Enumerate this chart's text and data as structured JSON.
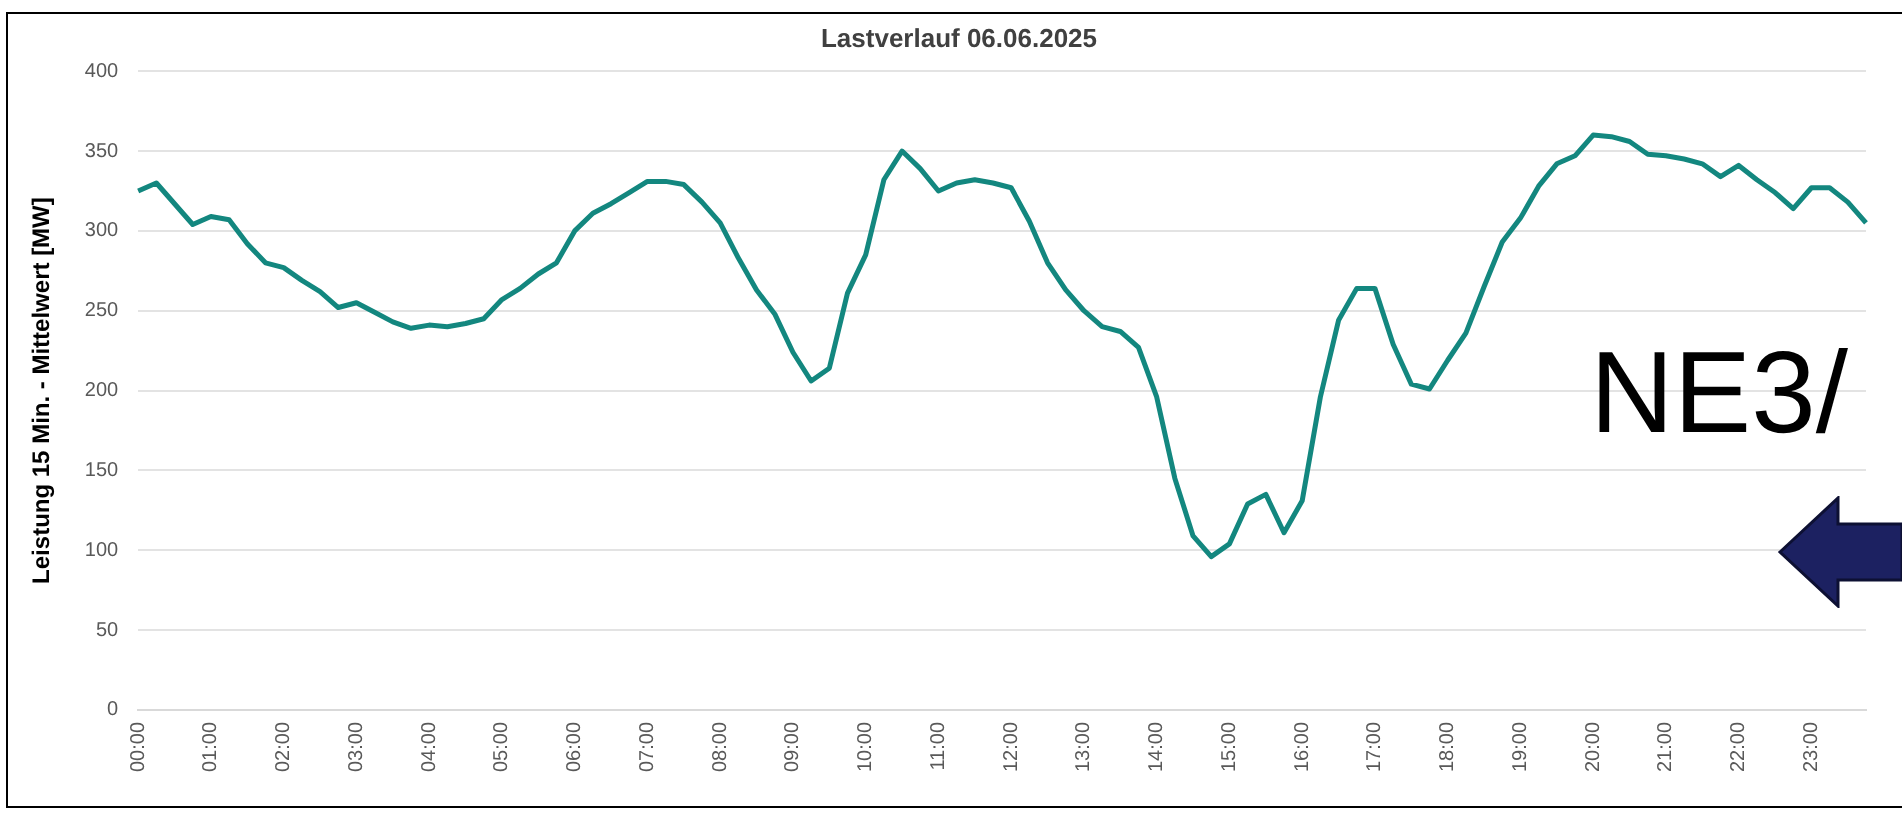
{
  "chart_data": {
    "type": "line",
    "title": "Lastverlauf 06.06.2025",
    "ylabel": "Leistung 15 Min. - Mittelwert [MW]",
    "categories": [
      "00:00",
      null,
      null,
      null,
      "01:00",
      null,
      null,
      null,
      "02:00",
      null,
      null,
      null,
      "03:00",
      null,
      null,
      null,
      "04:00",
      null,
      null,
      null,
      "05:00",
      null,
      null,
      null,
      "06:00",
      null,
      null,
      null,
      "07:00",
      null,
      null,
      null,
      "08:00",
      null,
      null,
      null,
      "09:00",
      null,
      null,
      null,
      "10:00",
      null,
      null,
      null,
      "11:00",
      null,
      null,
      null,
      "12:00",
      null,
      null,
      null,
      "13:00",
      null,
      null,
      null,
      "14:00",
      null,
      null,
      null,
      "15:00",
      null,
      null,
      null,
      "16:00",
      null,
      null,
      null,
      "17:00",
      null,
      null,
      null,
      "18:00",
      null,
      null,
      null,
      "19:00",
      null,
      null,
      null,
      "20:00",
      null,
      null,
      null,
      "21:00",
      null,
      null,
      null,
      "22:00",
      null,
      null,
      null,
      "23:00",
      null,
      null,
      null
    ],
    "series": [
      {
        "color": "#13877f",
        "values": [
          325,
          330,
          317,
          304,
          309,
          307,
          292,
          280,
          277,
          269,
          262,
          252,
          255,
          249,
          243,
          239,
          241,
          240,
          242,
          245,
          257,
          264,
          273,
          280,
          300,
          311,
          317,
          324,
          331,
          331,
          329,
          318,
          305,
          283,
          263,
          248,
          224,
          206,
          214,
          261,
          285,
          332,
          350,
          339,
          325,
          330,
          332,
          330,
          327,
          306,
          280,
          263,
          250,
          240,
          237,
          227,
          196,
          145,
          109,
          96,
          104,
          129,
          135,
          111,
          131,
          196,
          244,
          264,
          264,
          229,
          204,
          201,
          219,
          236,
          265,
          293,
          308,
          328,
          342,
          347,
          360,
          359,
          356,
          348,
          347,
          345,
          342,
          334,
          341,
          332,
          324,
          314,
          327,
          327,
          318,
          305
        ]
      }
    ],
    "ylim": [
      0,
      400
    ],
    "yticks": [
      0,
      50,
      100,
      150,
      200,
      250,
      300,
      350,
      400
    ],
    "grid": "y",
    "marker": "none",
    "line_style": "solid",
    "annotations": [
      "NE3/"
    ]
  }
}
